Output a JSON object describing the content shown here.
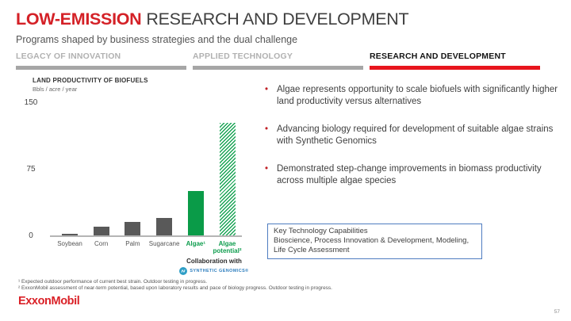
{
  "slide": {
    "title_highlight": "LOW-EMISSION",
    "title_rest": "RESEARCH AND DEVELOPMENT",
    "subtitle": "Programs shaped by business strategies and the dual challenge",
    "accent_red": "#d42127",
    "green": "#0a9b48"
  },
  "tabs": [
    {
      "label": "LEGACY OF INNOVATION",
      "active": false
    },
    {
      "label": "APPLIED TECHNOLOGY",
      "active": false
    },
    {
      "label": "RESEARCH AND DEVELOPMENT",
      "active": true
    }
  ],
  "chart": {
    "title": "LAND PRODUCTIVITY OF BIOFUELS",
    "unit": "Bbls / acre / year"
  },
  "chart_data": {
    "type": "bar",
    "title": "LAND PRODUCTIVITY OF BIOFUELS",
    "ylabel": "Bbls / acre / year",
    "categories": [
      "Soybean",
      "Corn",
      "Palm",
      "Sugarcane",
      "Algae¹",
      "Algae potential²"
    ],
    "values": [
      2,
      10,
      15,
      20,
      50,
      127
    ],
    "bar_styles": [
      "gray",
      "gray",
      "gray",
      "gray",
      "green",
      "hatched"
    ],
    "label_styles": [
      "gray",
      "gray",
      "gray",
      "gray",
      "green",
      "green"
    ],
    "ylim": [
      0,
      150
    ],
    "yticks": [
      0,
      75,
      150
    ],
    "grid": false,
    "legend": "none",
    "colors": {
      "gray": "#595959",
      "green": "#0a9b48"
    }
  },
  "collaboration": {
    "label": "Collaboration with",
    "partner": "SYNTHETIC GENOMICS®"
  },
  "bullets": [
    "Algae represents opportunity to scale biofuels with significantly higher land productivity versus alternatives",
    "Advancing biology required for development of suitable algae strains with Synthetic Genomics",
    "Demonstrated step-change improvements in biomass productivity across multiple algae species"
  ],
  "key_box": {
    "lines": [
      "Key Technology Capabilities",
      "Bioscience, Process Innovation & Development, Modeling,",
      "Life Cycle Assessment"
    ]
  },
  "footnotes": [
    "¹ Expected outdoor performance of current best strain. Outdoor testing in progress.",
    "² ExxonMobil assessment of near-term potential, based upon laboratory results and pace of biology progress. Outdoor testing in progress."
  ],
  "footer": {
    "logo": "ExxonMobil",
    "page": "57"
  }
}
